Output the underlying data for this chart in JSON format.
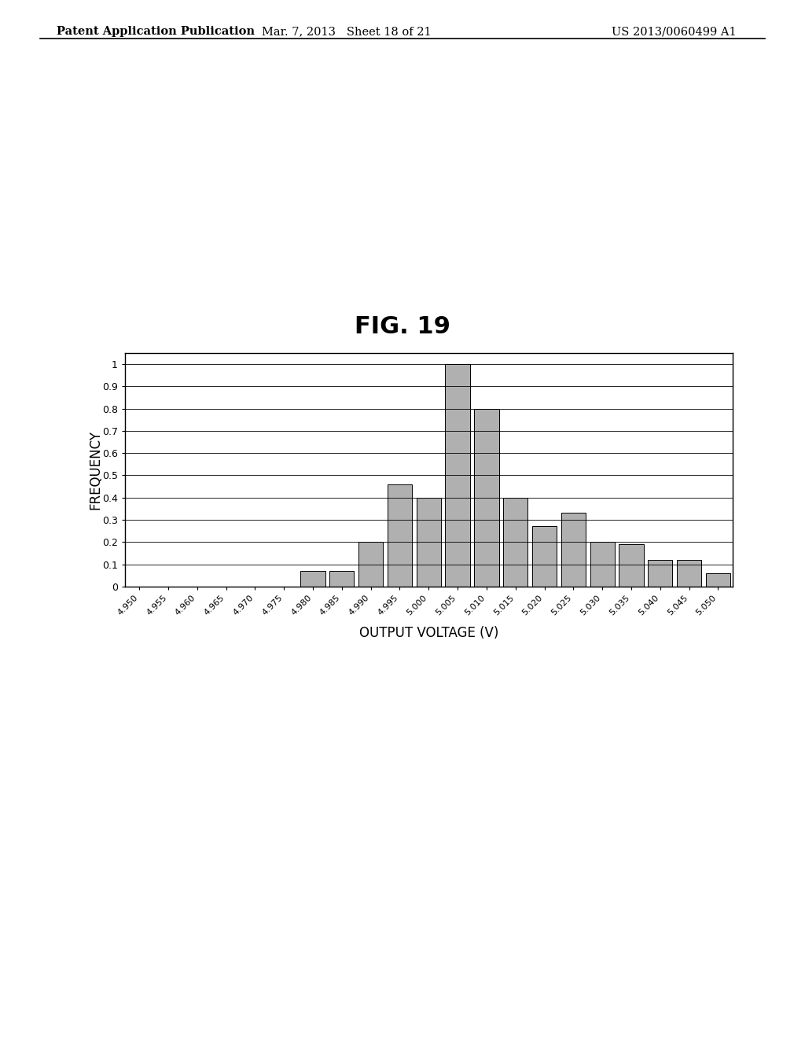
{
  "categories": [
    "4.950",
    "4.955",
    "4.960",
    "4.965",
    "4.970",
    "4.975",
    "4.980",
    "4.985",
    "4.990",
    "4.995",
    "5.000",
    "5.005",
    "5.010",
    "5.015",
    "5.020",
    "5.025",
    "5.030",
    "5.035",
    "5.040",
    "5.045",
    "5.050"
  ],
  "values": [
    0,
    0,
    0,
    0,
    0,
    0,
    0.07,
    0.07,
    0.2,
    0.46,
    0.4,
    1.0,
    0.8,
    0.4,
    0.27,
    0.33,
    0.2,
    0.19,
    0.12,
    0.12,
    0.06
  ],
  "bar_color": "#b0b0b0",
  "bar_edge_color": "#000000",
  "ylabel": "FREQUENCY",
  "xlabel": "OUTPUT VOLTAGE (V)",
  "title": "FIG. 19",
  "ylim": [
    0,
    1.05
  ],
  "yticks": [
    0,
    0.1,
    0.2,
    0.3,
    0.4,
    0.5,
    0.6,
    0.7,
    0.8,
    0.9,
    1.0
  ],
  "background_color": "#ffffff",
  "title_fontsize": 22,
  "label_fontsize": 12,
  "tick_fontsize": 9,
  "header_left": "Patent Application Publication",
  "header_mid": "Mar. 7, 2013   Sheet 18 of 21",
  "header_right": "US 2013/0060499 A1"
}
